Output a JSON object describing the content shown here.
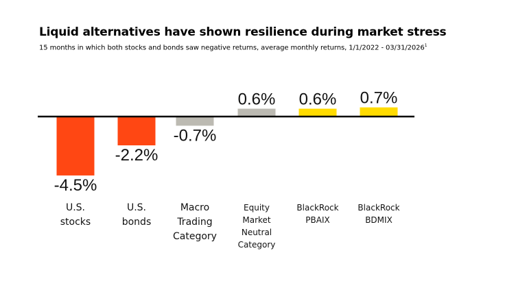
{
  "chart_data": {
    "type": "bar",
    "title": "Liquid alternatives have shown resilience during market stress",
    "subtitle": "15 months in which both stocks and bonds saw negative returns, average monthly returns, 1/1/2022 - 03/31/2026",
    "subtitle_footnote": "1",
    "categories": [
      [
        "U.S.",
        "stocks"
      ],
      [
        "U.S.",
        "bonds"
      ],
      [
        "Macro",
        "Trading",
        "Category"
      ],
      [
        "Equity",
        "Market",
        "Neutral",
        "Category"
      ],
      [
        "BlackRock",
        "PBAIX"
      ],
      [
        "BlackRock",
        "BDMIX"
      ]
    ],
    "values": [
      -4.5,
      -2.2,
      -0.7,
      0.6,
      0.6,
      0.7
    ],
    "value_labels": [
      "-4.5%",
      "-2.2%",
      "-0.7%",
      "0.6%",
      "0.6%",
      "0.7%"
    ],
    "bar_colors": [
      "#FF4713",
      "#FF4713",
      "#BCBAB2",
      "#BCBAB2",
      "#FFDB00",
      "#FFDB00"
    ],
    "ylim": [
      -4.5,
      0.7
    ],
    "grid": false,
    "xlabel": "",
    "ylabel": ""
  }
}
